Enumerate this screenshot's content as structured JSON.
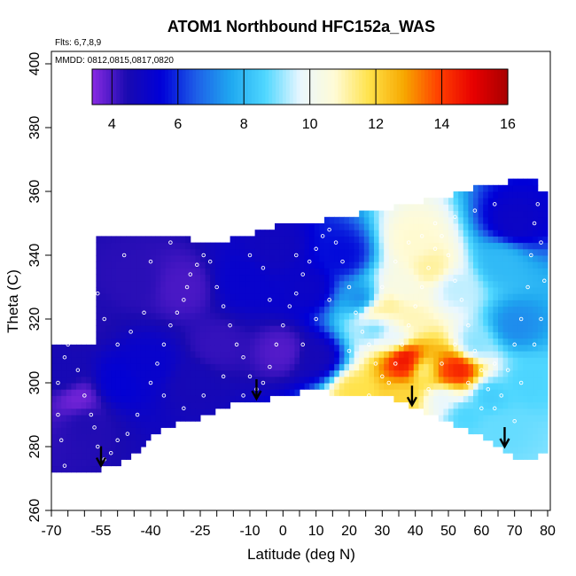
{
  "chart_data": {
    "type": "heatmap",
    "title": "ATOM1 Northbound HFC152a_WAS",
    "annotations": [
      "Flts: 6,7,8,9",
      "MMDD: 0812,0815,0817,0820"
    ],
    "xlabel": "Latitude (deg N)",
    "ylabel": "Theta (C)",
    "xlim": [
      -70,
      80
    ],
    "ylim": [
      260,
      400
    ],
    "x_ticks": [
      -70,
      -55,
      -40,
      -25,
      -10,
      0,
      10,
      20,
      30,
      40,
      50,
      60,
      70,
      80
    ],
    "x_tick_labels": [
      "-70",
      "-55",
      "-40",
      "-25",
      "-10",
      "0",
      "10",
      "20",
      "30",
      "40",
      "50",
      "60",
      "70",
      "80"
    ],
    "y_ticks": [
      260,
      280,
      300,
      320,
      340,
      360,
      380,
      400
    ],
    "y_tick_labels": [
      "260",
      "280",
      "300",
      "320",
      "340",
      "360",
      "380",
      "400"
    ],
    "colorbar": {
      "range": [
        3.4,
        16
      ],
      "ticks": [
        4,
        6,
        8,
        10,
        12,
        14,
        16
      ],
      "tick_labels": [
        "4",
        "6",
        "8",
        "10",
        "12",
        "14",
        "16"
      ],
      "colors": [
        "#8a2be2",
        "#1a0ab0",
        "#0000d8",
        "#1e5ee8",
        "#1fa8f0",
        "#4fd7ff",
        "#e9f7ff",
        "#fffbd6",
        "#ffe24a",
        "#f7a800",
        "#ff4000",
        "#e80000",
        "#a80000"
      ]
    },
    "domain_top": [
      [
        -56,
        346
      ],
      [
        -52,
        346
      ],
      [
        -42,
        346
      ],
      [
        -32,
        346
      ],
      [
        -22,
        343
      ],
      [
        -12,
        346
      ],
      [
        -2,
        349
      ],
      [
        8,
        350
      ],
      [
        18,
        352
      ],
      [
        28,
        354
      ],
      [
        38,
        356
      ],
      [
        48,
        358
      ],
      [
        58,
        361
      ],
      [
        68,
        363
      ],
      [
        76,
        365
      ],
      [
        78,
        360
      ]
    ],
    "domain_bottom": [
      [
        -70,
        272
      ],
      [
        -63,
        272
      ],
      [
        -55,
        273
      ],
      [
        -47,
        276
      ],
      [
        -36,
        286
      ],
      [
        -25,
        289
      ],
      [
        -16,
        293
      ],
      [
        -8,
        294
      ],
      [
        0,
        296
      ],
      [
        10,
        298
      ],
      [
        18,
        296
      ],
      [
        25,
        295
      ],
      [
        32,
        296
      ],
      [
        40,
        292
      ],
      [
        50,
        288
      ],
      [
        60,
        283
      ],
      [
        68,
        278
      ],
      [
        73,
        275
      ],
      [
        77,
        277
      ],
      [
        80,
        278
      ]
    ],
    "domain_right_top": 360,
    "features": [
      {
        "lat": -12,
        "theta": 332,
        "value": 5.2
      },
      {
        "lat": -2,
        "theta": 342,
        "value": 4.8
      },
      {
        "lat": 8,
        "theta": 330,
        "value": 5.0
      },
      {
        "lat": 18,
        "theta": 340,
        "value": 5.6
      },
      {
        "lat": 24,
        "theta": 326,
        "value": 7.0
      },
      {
        "lat": 28,
        "theta": 318,
        "value": 8.6
      },
      {
        "lat": 36,
        "theta": 330,
        "value": 10.4
      },
      {
        "lat": 40,
        "theta": 344,
        "value": 10.8
      },
      {
        "lat": 45,
        "theta": 336,
        "value": 11.2
      },
      {
        "lat": 38,
        "theta": 320,
        "value": 11.0
      },
      {
        "lat": 32,
        "theta": 324,
        "value": 11.3
      },
      {
        "lat": 28,
        "theta": 322,
        "value": 11.6
      },
      {
        "lat": 34,
        "theta": 314,
        "value": 9.6
      },
      {
        "lat": 52,
        "theta": 330,
        "value": 9.4
      },
      {
        "lat": 58,
        "theta": 312,
        "value": 9.0
      },
      {
        "lat": 66,
        "theta": 338,
        "value": 8.0
      },
      {
        "lat": 70,
        "theta": 318,
        "value": 7.2
      },
      {
        "lat": 74,
        "theta": 300,
        "value": 8.6
      },
      {
        "lat": 48,
        "theta": 296,
        "value": 9.6
      },
      {
        "lat": 36,
        "theta": 296,
        "value": 12.0
      },
      {
        "lat": 42,
        "theta": 304,
        "value": 10.6
      },
      {
        "lat": 38,
        "theta": 305,
        "value": 14.8
      },
      {
        "lat": 37,
        "theta": 308,
        "value": 15.0
      },
      {
        "lat": 49,
        "theta": 303,
        "value": 14.2
      },
      {
        "lat": 53,
        "theta": 304,
        "value": 14.6
      },
      {
        "lat": 44,
        "theta": 302,
        "value": 11.8
      },
      {
        "lat": 22,
        "theta": 297,
        "value": 11.8
      },
      {
        "lat": 62,
        "theta": 296,
        "value": 8.4
      },
      {
        "lat": 66,
        "theta": 286,
        "value": 8.8
      },
      {
        "lat": 55,
        "theta": 290,
        "value": 8.6
      },
      {
        "lat": 10,
        "theta": 308,
        "value": 4.6
      },
      {
        "lat": 0,
        "theta": 310,
        "value": 3.9
      },
      {
        "lat": -20,
        "theta": 312,
        "value": 4.2
      },
      {
        "lat": -30,
        "theta": 330,
        "value": 4.0
      },
      {
        "lat": -45,
        "theta": 332,
        "value": 4.3
      },
      {
        "lat": -60,
        "theta": 320,
        "value": 4.4
      },
      {
        "lat": -66,
        "theta": 302,
        "value": 4.6
      },
      {
        "lat": -50,
        "theta": 300,
        "value": 5.4
      },
      {
        "lat": -40,
        "theta": 305,
        "value": 5.2
      },
      {
        "lat": -28,
        "theta": 300,
        "value": 4.6
      },
      {
        "lat": -60,
        "theta": 288,
        "value": 4.4
      },
      {
        "lat": -62,
        "theta": 295,
        "value": 3.6
      },
      {
        "lat": 70,
        "theta": 350,
        "value": 5.0
      }
    ],
    "background_value": 4.2,
    "samples": [
      [
        -66,
        274
      ],
      [
        -67,
        282
      ],
      [
        -68,
        290
      ],
      [
        -68,
        300
      ],
      [
        -66,
        308
      ],
      [
        -65,
        312
      ],
      [
        -62,
        304
      ],
      [
        -60,
        296
      ],
      [
        -58,
        290
      ],
      [
        -57,
        286
      ],
      [
        -56,
        280
      ],
      [
        -54,
        276
      ],
      [
        -52,
        278
      ],
      [
        -50,
        282
      ],
      [
        -47,
        284
      ],
      [
        -44,
        290
      ],
      [
        -40,
        300
      ],
      [
        -38,
        306
      ],
      [
        -36,
        312
      ],
      [
        -34,
        318
      ],
      [
        -32,
        322
      ],
      [
        -30,
        326
      ],
      [
        -29,
        330
      ],
      [
        -28,
        334
      ],
      [
        -26,
        337
      ],
      [
        -24,
        340
      ],
      [
        -22,
        338
      ],
      [
        -20,
        330
      ],
      [
        -18,
        324
      ],
      [
        -16,
        318
      ],
      [
        -14,
        312
      ],
      [
        -12,
        308
      ],
      [
        -10,
        302
      ],
      [
        -8,
        298
      ],
      [
        -6,
        300
      ],
      [
        -4,
        305
      ],
      [
        -2,
        312
      ],
      [
        0,
        318
      ],
      [
        2,
        324
      ],
      [
        4,
        328
      ],
      [
        6,
        334
      ],
      [
        8,
        338
      ],
      [
        10,
        342
      ],
      [
        12,
        346
      ],
      [
        14,
        348
      ],
      [
        16,
        344
      ],
      [
        18,
        338
      ],
      [
        20,
        330
      ],
      [
        22,
        322
      ],
      [
        24,
        316
      ],
      [
        26,
        312
      ],
      [
        28,
        306
      ],
      [
        30,
        302
      ],
      [
        32,
        300
      ],
      [
        34,
        306
      ],
      [
        36,
        312
      ],
      [
        38,
        318
      ],
      [
        40,
        324
      ],
      [
        42,
        330
      ],
      [
        44,
        336
      ],
      [
        46,
        342
      ],
      [
        48,
        346
      ],
      [
        50,
        340
      ],
      [
        52,
        332
      ],
      [
        54,
        326
      ],
      [
        56,
        318
      ],
      [
        58,
        310
      ],
      [
        60,
        304
      ],
      [
        62,
        298
      ],
      [
        64,
        292
      ],
      [
        66,
        296
      ],
      [
        68,
        304
      ],
      [
        70,
        312
      ],
      [
        72,
        320
      ],
      [
        74,
        330
      ],
      [
        75,
        340
      ],
      [
        76,
        350
      ],
      [
        77,
        356
      ],
      [
        78,
        344
      ],
      [
        79,
        332
      ],
      [
        -56,
        328
      ],
      [
        -54,
        320
      ],
      [
        -50,
        312
      ],
      [
        -46,
        316
      ],
      [
        -42,
        322
      ],
      [
        -36,
        296
      ],
      [
        -30,
        292
      ],
      [
        -24,
        296
      ],
      [
        -18,
        302
      ],
      [
        -12,
        296
      ],
      [
        -48,
        340
      ],
      [
        -40,
        338
      ],
      [
        -34,
        344
      ],
      [
        -10,
        340
      ],
      [
        -6,
        336
      ],
      [
        4,
        340
      ],
      [
        14,
        326
      ],
      [
        20,
        310
      ],
      [
        26,
        296
      ],
      [
        44,
        298
      ],
      [
        48,
        306
      ],
      [
        52,
        312
      ],
      [
        56,
        300
      ],
      [
        60,
        292
      ],
      [
        64,
        306
      ],
      [
        70,
        288
      ],
      [
        72,
        300
      ],
      [
        76,
        312
      ],
      [
        78,
        320
      ],
      [
        30,
        330
      ],
      [
        34,
        338
      ],
      [
        38,
        344
      ],
      [
        42,
        346
      ],
      [
        46,
        350
      ],
      [
        52,
        352
      ],
      [
        58,
        354
      ],
      [
        64,
        356
      ],
      [
        10,
        320
      ],
      [
        6,
        312
      ],
      [
        -4,
        326
      ]
    ],
    "arrows": [
      {
        "lat": -55,
        "theta": 274
      },
      {
        "lat": -8,
        "theta": 295
      },
      {
        "lat": 39,
        "theta": 293
      },
      {
        "lat": 67,
        "theta": 280
      }
    ]
  }
}
